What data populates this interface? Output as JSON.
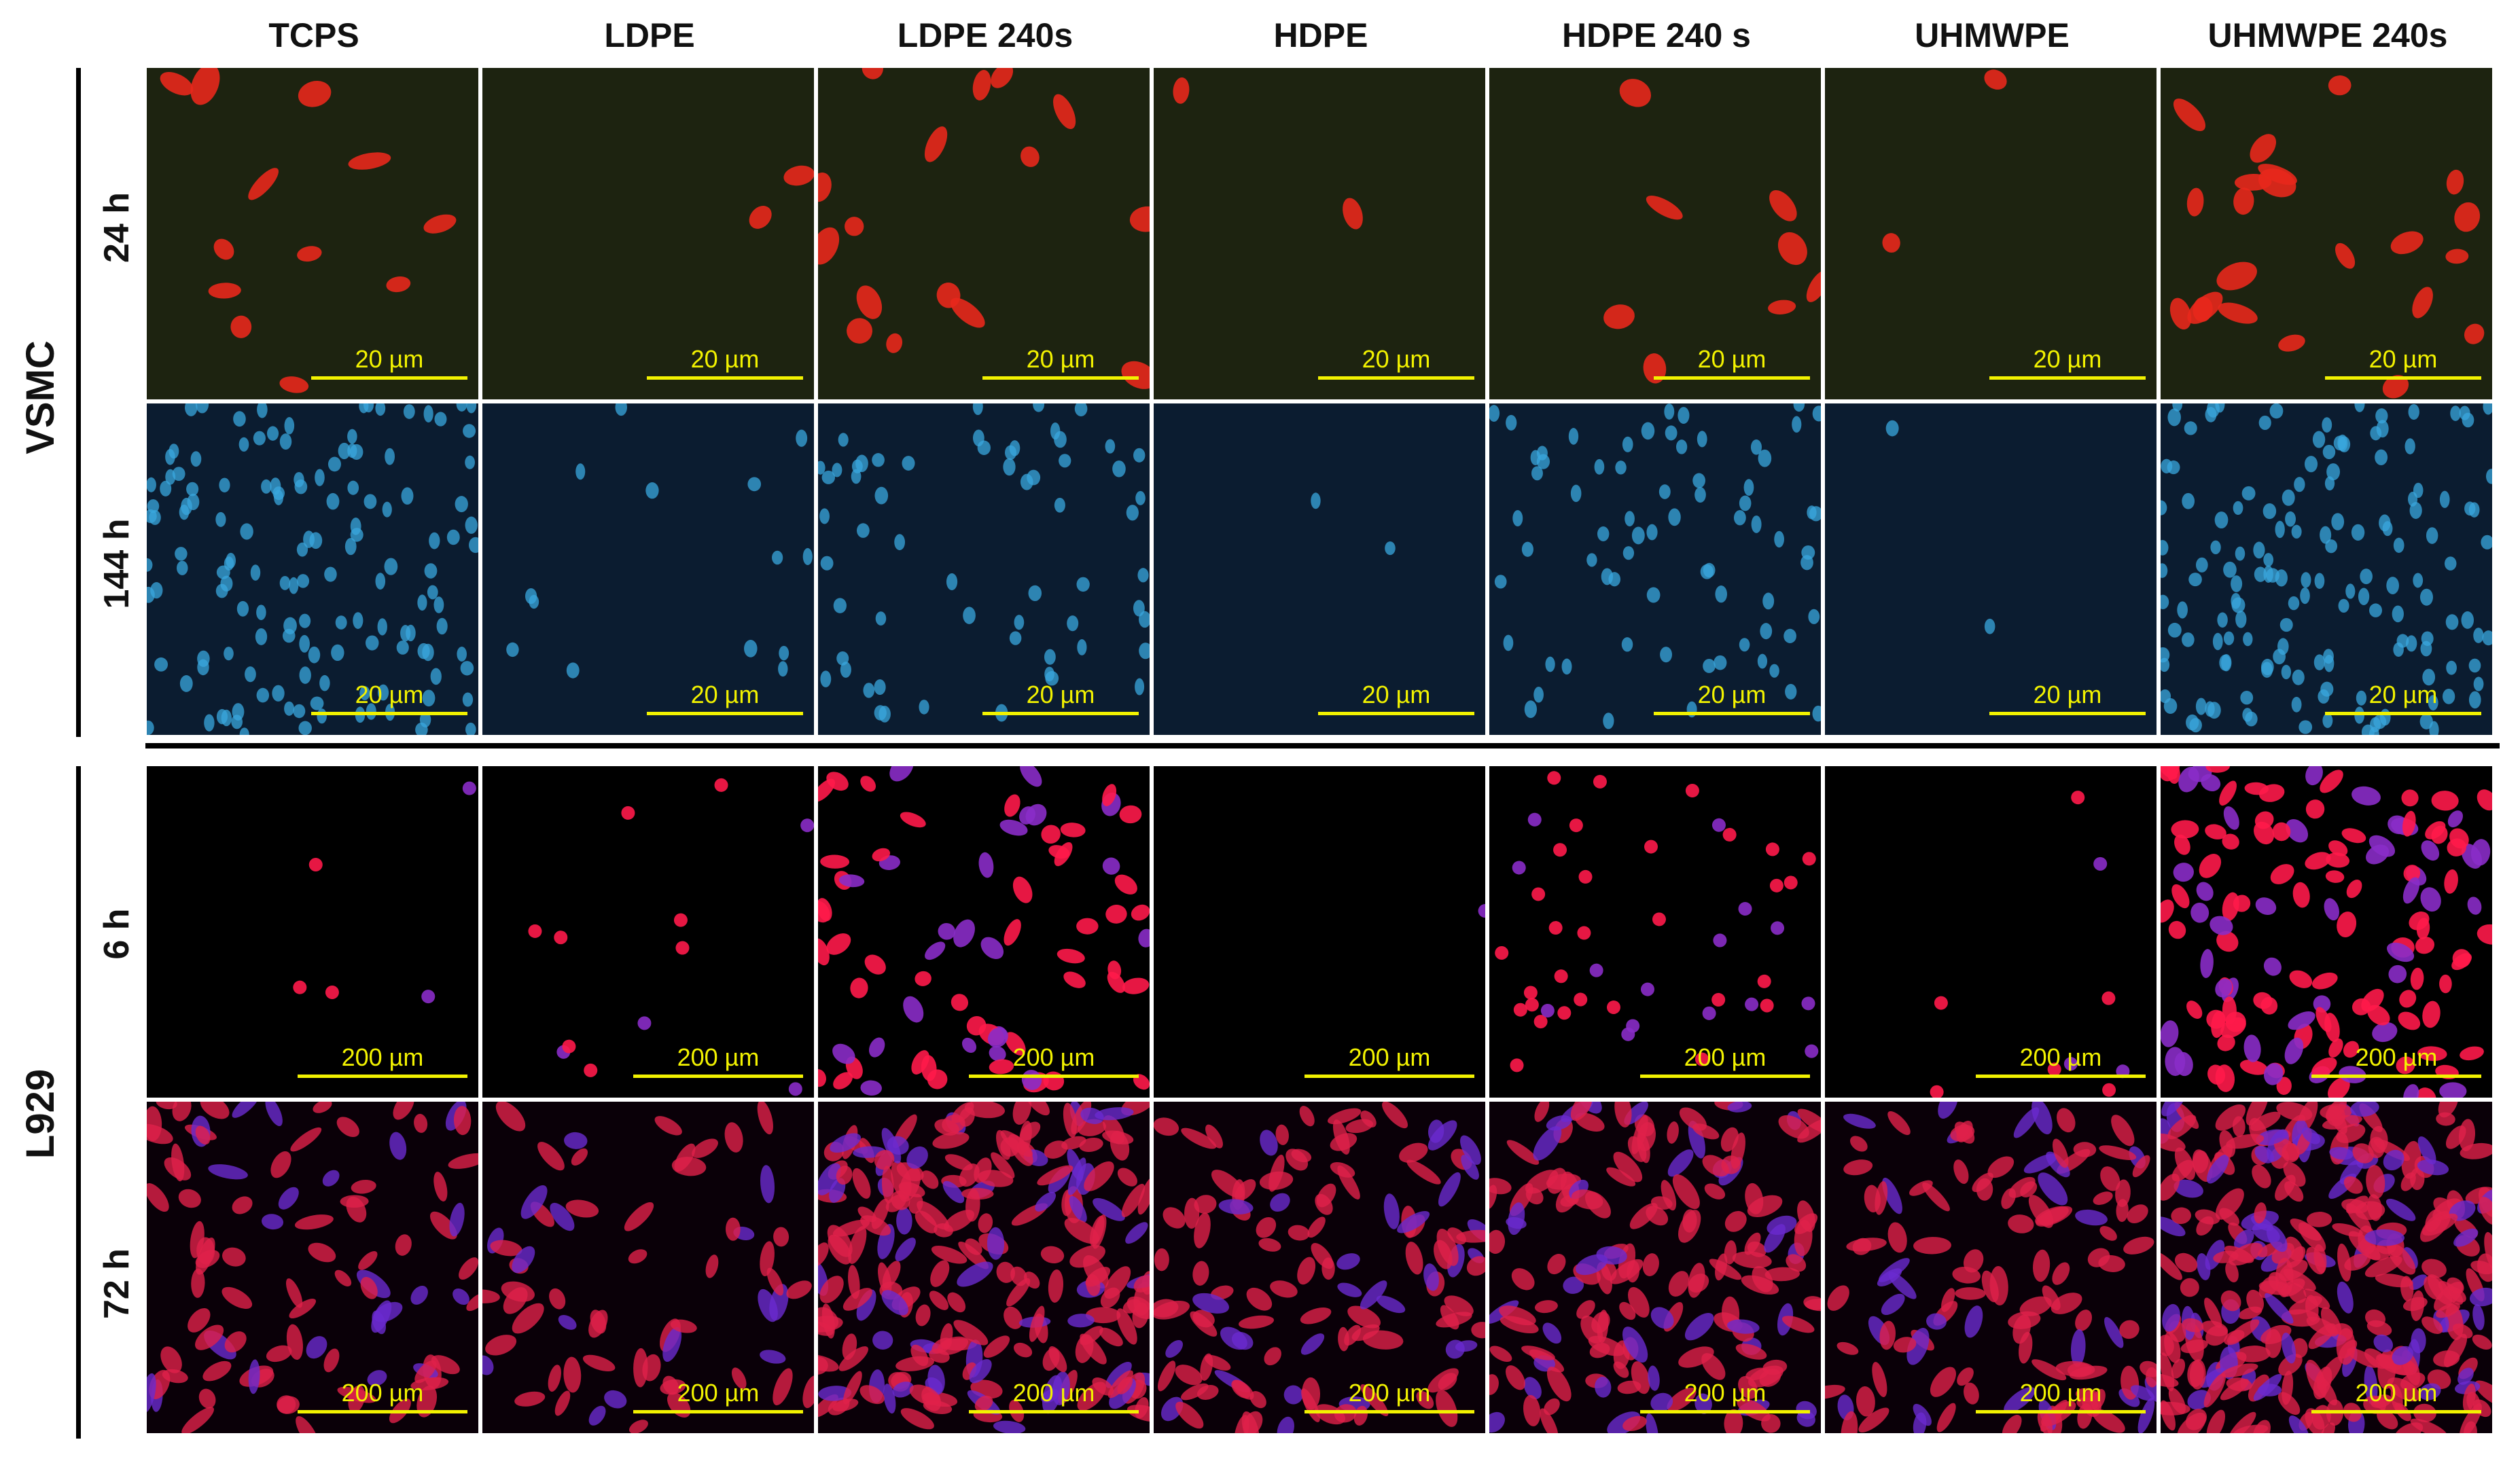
{
  "columns": [
    "TCPS",
    "LDPE",
    "LDPE 240s",
    "HDPE",
    "HDPE 240 s",
    "UHMWPE",
    "UHMWPE 240s"
  ],
  "groups": [
    {
      "label": "VSMC",
      "rows": [
        "24 h",
        "144 h"
      ],
      "scale": "20 µm"
    },
    {
      "label": "L929",
      "rows": [
        "6 h",
        "72 h"
      ],
      "scale": "200 µm"
    }
  ],
  "panel_styles": {
    "vsmc_24h": {
      "background": "#1d2310",
      "cell_color": "#e8281c",
      "description": "red stained VSMC cells"
    },
    "vsmc_144h": {
      "background": "#0b1c30",
      "cell_color": "#3aa7dd",
      "description": "blue DAPI nuclei"
    },
    "l929_6h": {
      "background": "#000000",
      "cell_color": "#ff1a4a",
      "description": "magenta cells"
    },
    "l929_72h": {
      "background": "#0a0008",
      "cell_color": "#e0204a",
      "description": "dense red/purple cells"
    }
  },
  "cell_density": {
    "vsmc_24h": [
      12,
      2,
      16,
      2,
      8,
      2,
      22
    ],
    "vsmc_144h": [
      140,
      14,
      60,
      2,
      70,
      2,
      150
    ],
    "l929_6h": [
      5,
      12,
      70,
      1,
      45,
      9,
      130
    ],
    "l929_72h": [
      90,
      60,
      220,
      120,
      160,
      120,
      300
    ]
  }
}
